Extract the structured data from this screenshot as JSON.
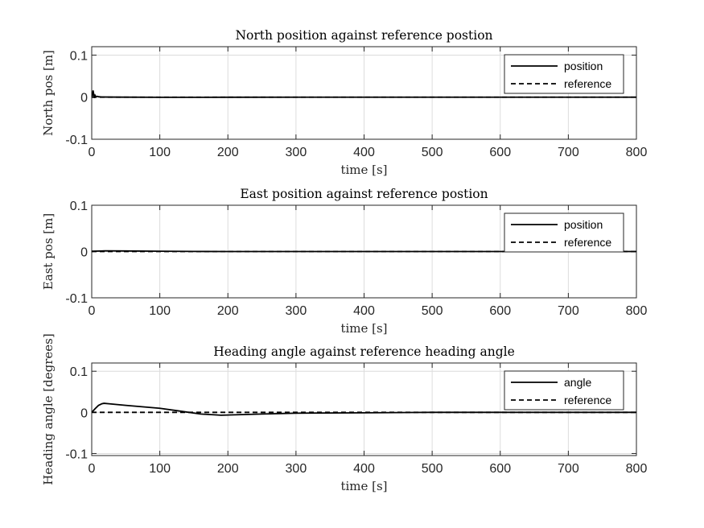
{
  "chart_data": [
    {
      "type": "line",
      "title": "North position against reference postion",
      "xlabel": "time [s]",
      "ylabel": "North pos [m]",
      "xlim": [
        0,
        800
      ],
      "ylim": [
        -0.1,
        0.12
      ],
      "xticks": [
        0,
        100,
        200,
        300,
        400,
        500,
        600,
        700,
        800
      ],
      "yticks": [
        -0.1,
        0,
        0.1
      ],
      "ytick_labels": [
        "-0.1",
        "0",
        "0.1"
      ],
      "grid": true,
      "legend_position": "top-right",
      "series": [
        {
          "name": "position",
          "style": "solid",
          "color": "#000000",
          "x": [
            0,
            1,
            2,
            3,
            4,
            5,
            6,
            8,
            10,
            15,
            20,
            40,
            100,
            200,
            400,
            600,
            800
          ],
          "y": [
            0,
            0.004,
            0.016,
            0.006,
            -0.002,
            0.004,
            0.001,
            0.002,
            0.001,
            0.0005,
            0.0003,
            0.0001,
            -0.0003,
            -0.0002,
            0,
            0,
            0
          ]
        },
        {
          "name": "reference",
          "style": "dashed",
          "color": "#000000",
          "x": [
            0,
            800
          ],
          "y": [
            0,
            0
          ]
        }
      ]
    },
    {
      "type": "line",
      "title": "East position against reference postion",
      "xlabel": "time [s]",
      "ylabel": "East pos [m]",
      "xlim": [
        0,
        800
      ],
      "ylim": [
        -0.1,
        0.1
      ],
      "xticks": [
        0,
        100,
        200,
        300,
        400,
        500,
        600,
        700,
        800
      ],
      "yticks": [
        -0.1,
        0,
        0.1
      ],
      "ytick_labels": [
        "-0.1",
        "0",
        "0.1"
      ],
      "grid": true,
      "legend_position": "top-right",
      "series": [
        {
          "name": "position",
          "style": "solid",
          "color": "#000000",
          "x": [
            0,
            20,
            50,
            100,
            150,
            200,
            300,
            800
          ],
          "y": [
            0.0005,
            0.0015,
            0.0012,
            0.0006,
            0.0002,
            0,
            0,
            0
          ]
        },
        {
          "name": "reference",
          "style": "dashed",
          "color": "#000000",
          "x": [
            0,
            800
          ],
          "y": [
            0,
            0
          ]
        }
      ]
    },
    {
      "type": "line",
      "title": "Heading angle against reference heading angle",
      "xlabel": "time [s]",
      "ylabel": "Heading angle [degrees]",
      "xlim": [
        0,
        800
      ],
      "ylim": [
        -0.105,
        0.12
      ],
      "xticks": [
        0,
        100,
        200,
        300,
        400,
        500,
        600,
        700,
        800
      ],
      "yticks": [
        -0.1,
        0,
        0.1
      ],
      "ytick_labels": [
        "-0.1",
        "0",
        "0.1"
      ],
      "grid": true,
      "legend_position": "top-right",
      "series": [
        {
          "name": "angle",
          "style": "solid",
          "color": "#000000",
          "x": [
            0,
            5,
            10,
            15,
            18,
            25,
            50,
            100,
            130,
            160,
            190,
            250,
            300,
            400,
            500,
            600,
            800
          ],
          "y": [
            0,
            0.009,
            0.017,
            0.021,
            0.022,
            0.021,
            0.017,
            0.01,
            0.003,
            -0.004,
            -0.007,
            -0.004,
            -0.002,
            -0.001,
            0,
            0,
            0
          ]
        },
        {
          "name": "reference",
          "style": "dashed",
          "color": "#000000",
          "x": [
            0,
            800
          ],
          "y": [
            0,
            0
          ]
        }
      ]
    }
  ]
}
